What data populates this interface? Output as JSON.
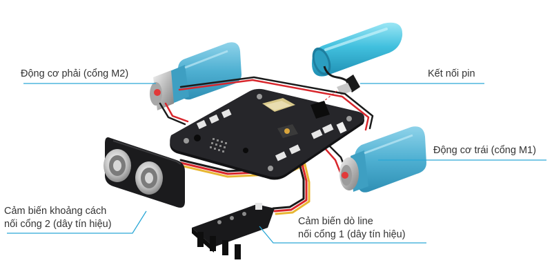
{
  "labels": {
    "motor_right": "Động cơ phải (cổng M2)",
    "battery": "Kết nối pin",
    "motor_left": "Động cơ trái (cổng M1)",
    "distance_sensor_line1": "Cảm biến khoảng cách",
    "distance_sensor_line2": "nối cổng 2 (dây tín hiệu)",
    "line_sensor_line1": "Cảm biến dò line",
    "line_sensor_line2": "nối cổng 1 (dây tín hiệu)"
  },
  "colors": {
    "leader_line": "#2aa7d6",
    "motor_body": "#5bb8d6",
    "battery_body": "#48c4df",
    "board": "#1d1d1f",
    "wire_red": "#d8262c",
    "wire_black": "#1a1a1a",
    "wire_yellow": "#e8b632"
  }
}
